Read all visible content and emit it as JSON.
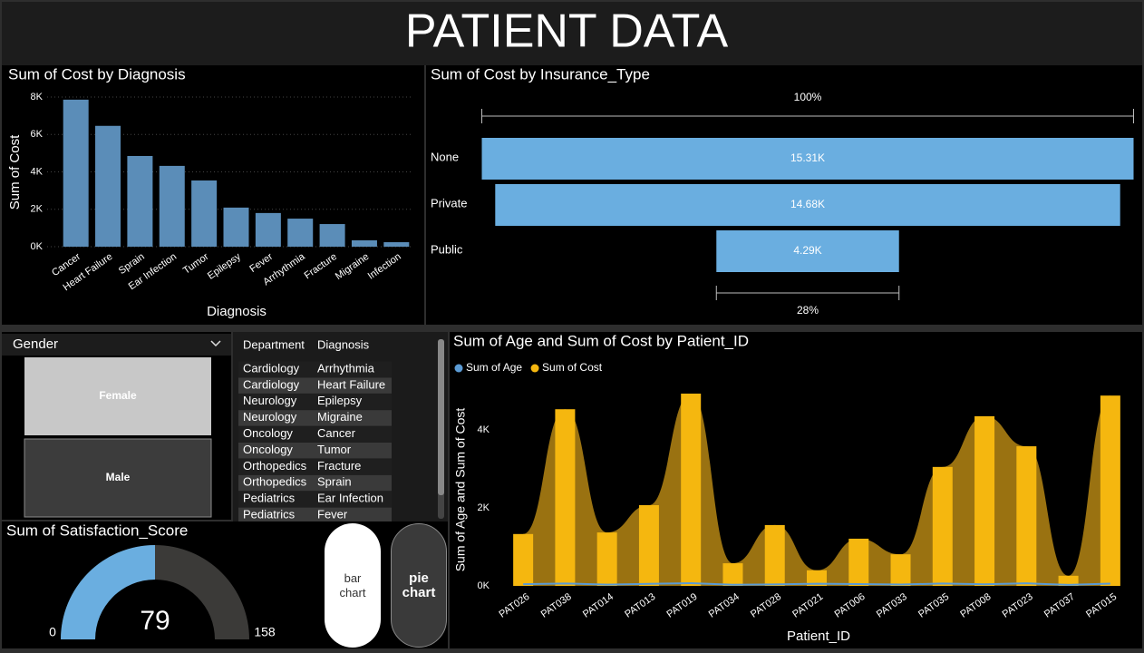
{
  "header": {
    "title": "PATIENT DATA"
  },
  "chart_data": [
    {
      "type": "bar",
      "title": "Sum of Cost by Diagnosis",
      "x_label": "Diagnosis",
      "y_label": "Sum of Cost",
      "categories": [
        "Cancer",
        "Heart Failure",
        "Sprain",
        "Ear Infection",
        "Tumor",
        "Epilepsy",
        "Fever",
        "Arrhythmia",
        "Fracture",
        "Migraine",
        "Infection"
      ],
      "values": [
        7860,
        6460,
        4850,
        4320,
        3540,
        2090,
        1800,
        1500,
        1210,
        340,
        240
      ],
      "color": "#5b8db8",
      "ylim": [
        0,
        8000
      ],
      "yticks": [
        {
          "value": 0,
          "label": "0K"
        },
        {
          "value": 2000,
          "label": "2K"
        },
        {
          "value": 4000,
          "label": "4K"
        },
        {
          "value": 6000,
          "label": "6K"
        },
        {
          "value": 8000,
          "label": "8K"
        }
      ],
      "grid": true
    },
    {
      "type": "funnel",
      "title": "Sum of Cost by Insurance_Type",
      "categories": [
        "None",
        "Private",
        "Public"
      ],
      "values": [
        15310,
        14680,
        4290
      ],
      "value_labels": [
        "15.31K",
        "14.68K",
        "4.29K"
      ],
      "color": "#6aaee0",
      "top_label": "100%",
      "bottom_label": "28%"
    },
    {
      "type": "combo",
      "title": "Sum of Age and Sum of Cost by Patient_ID",
      "x_label": "Patient_ID",
      "y_label": "Sum of Age and Sum of Cost",
      "categories": [
        "PAT026",
        "PAT038",
        "PAT014",
        "PAT013",
        "PAT019",
        "PAT034",
        "PAT028",
        "PAT021",
        "PAT006",
        "PAT033",
        "PAT035",
        "PAT008",
        "PAT023",
        "PAT037",
        "PAT015"
      ],
      "series": [
        {
          "name": "Sum of Age",
          "color": "#5b9bd5",
          "values": [
            45,
            62,
            33,
            51,
            70,
            28,
            39,
            55,
            47,
            36,
            60,
            42,
            66,
            25,
            58
          ]
        },
        {
          "name": "Sum of Cost",
          "color": "#f5b70f",
          "area_color": "#9a7211",
          "values": [
            1330,
            4530,
            1370,
            2070,
            4930,
            580,
            1560,
            400,
            1210,
            810,
            3050,
            4350,
            3580,
            260,
            4880
          ]
        }
      ],
      "ylim": [
        0,
        5200
      ],
      "yticks": [
        {
          "value": 0,
          "label": "0K"
        },
        {
          "value": 2000,
          "label": "2K"
        },
        {
          "value": 4000,
          "label": "4K"
        }
      ],
      "legend": "top-left"
    },
    {
      "type": "gauge",
      "title": "Sum of Satisfaction_Score",
      "value": 79,
      "min": 0,
      "max": 158,
      "color": "#6aaee0",
      "track_color": "#3b3a38"
    }
  ],
  "slicer": {
    "title": "Gender",
    "items": [
      "Female",
      "Male"
    ],
    "selected": "Female"
  },
  "table": {
    "columns": [
      "Department",
      "Diagnosis"
    ],
    "rows": [
      [
        "Cardiology",
        "Arrhythmia"
      ],
      [
        "Cardiology",
        "Heart Failure"
      ],
      [
        "Neurology",
        "Epilepsy"
      ],
      [
        "Neurology",
        "Migraine"
      ],
      [
        "Oncology",
        "Cancer"
      ],
      [
        "Oncology",
        "Tumor"
      ],
      [
        "Orthopedics",
        "Fracture"
      ],
      [
        "Orthopedics",
        "Sprain"
      ],
      [
        "Pediatrics",
        "Ear Infection"
      ],
      [
        "Pediatrics",
        "Fever"
      ]
    ]
  },
  "buttons": [
    "bar chart",
    "pie chart"
  ]
}
